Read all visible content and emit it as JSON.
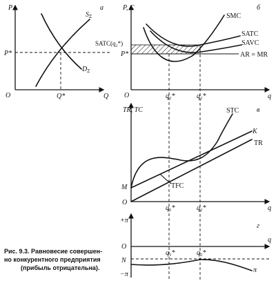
{
  "panel_a": {
    "letter": "а",
    "y_axis": "P",
    "x_axis": "Q",
    "origin": "O",
    "supply": "S",
    "supply_sub": "Σ",
    "demand": "D",
    "demand_sub": "Σ",
    "eq_price": "P*",
    "eq_qty": "Q*"
  },
  "panel_b": {
    "letter": "б",
    "y_axis": "P, C",
    "x_axis": "q",
    "origin": "O",
    "smc": "SMC",
    "satc": "SATC",
    "savc": "SAVC",
    "ar_mr": "AR = MR",
    "satc_q2": "SATC(q₂*)",
    "price": "P*",
    "q1": "q₁*",
    "q2": "q₂*"
  },
  "panel_c": {
    "letter": "в",
    "y_axis": "TR, TC",
    "x_axis": "q",
    "origin": "O",
    "stc": "STC",
    "k": "K",
    "tr": "TR",
    "tfc": "TFC",
    "m": "M",
    "q1": "q₁*",
    "q2": "q₂*"
  },
  "panel_d": {
    "letter": "г",
    "y_top": "+π",
    "y_bottom": "−π",
    "x_axis": "q",
    "origin": "O",
    "n": "N",
    "pi": "π",
    "q1": "q₁*",
    "q2": "q₂*"
  },
  "caption": {
    "line1": "Рис. 9.3. Равновесие совершен-",
    "line2": "но конкурентного предприятия",
    "line3": "(прибыль отрицательна)."
  }
}
